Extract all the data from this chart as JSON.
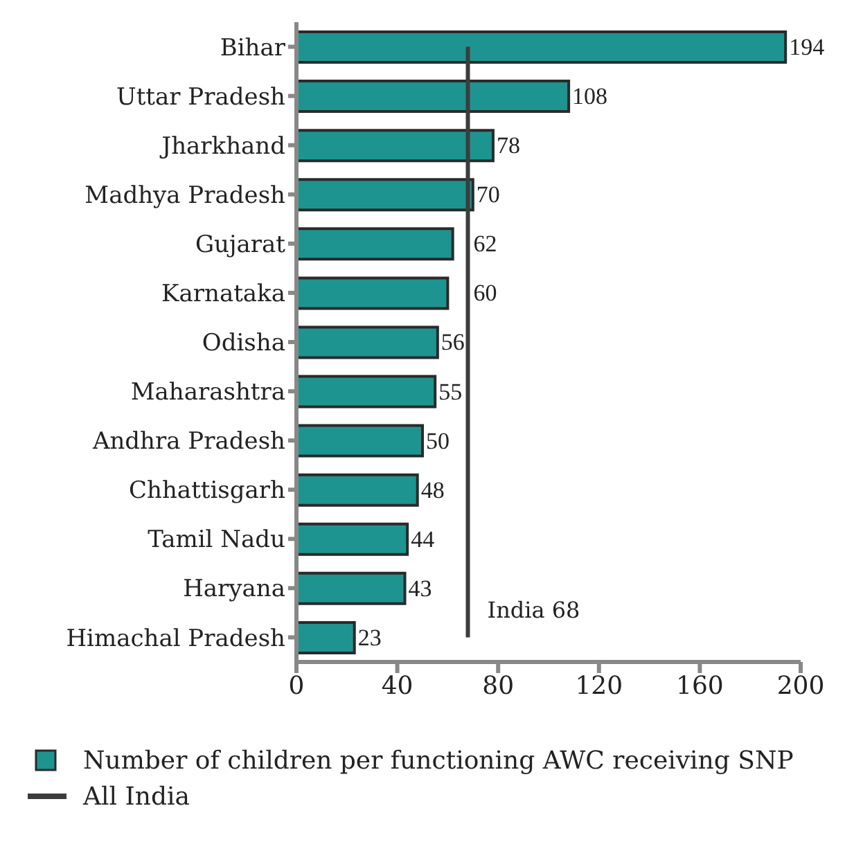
{
  "chart_data": {
    "type": "bar",
    "orientation": "horizontal",
    "categories": [
      "Bihar",
      "Uttar Pradesh",
      "Jharkhand",
      "Madhya Pradesh",
      "Gujarat",
      "Karnataka",
      "Odisha",
      "Maharashtra",
      "Andhra Pradesh",
      "Chhattisgarh",
      "Tamil Nadu",
      "Haryana",
      "Himachal Pradesh"
    ],
    "series": [
      {
        "name": "Number of children per functioning AWC receiving SNP",
        "color": "#1e9490",
        "values": [
          194,
          108,
          78,
          70,
          62,
          60,
          56,
          55,
          50,
          48,
          44,
          43,
          23
        ],
        "value_labels": [
          "194",
          "108",
          "78",
          "70",
          "62",
          "60",
          "56",
          "55",
          "50",
          "48",
          "44",
          "43",
          "23"
        ]
      },
      {
        "name": "All India",
        "type": "line",
        "color": "#3c3c3c",
        "values": [
          68,
          68,
          68,
          68,
          68,
          68,
          68,
          68,
          68,
          68,
          68,
          68,
          68
        ]
      }
    ],
    "xlim": [
      0,
      200
    ],
    "xticks": [
      0,
      40,
      80,
      120,
      160,
      200
    ],
    "legend": "bottom",
    "marker": "none",
    "annotations": [
      {
        "text": "India 68",
        "x": 68,
        "y": "Himachal Pradesh"
      }
    ]
  }
}
